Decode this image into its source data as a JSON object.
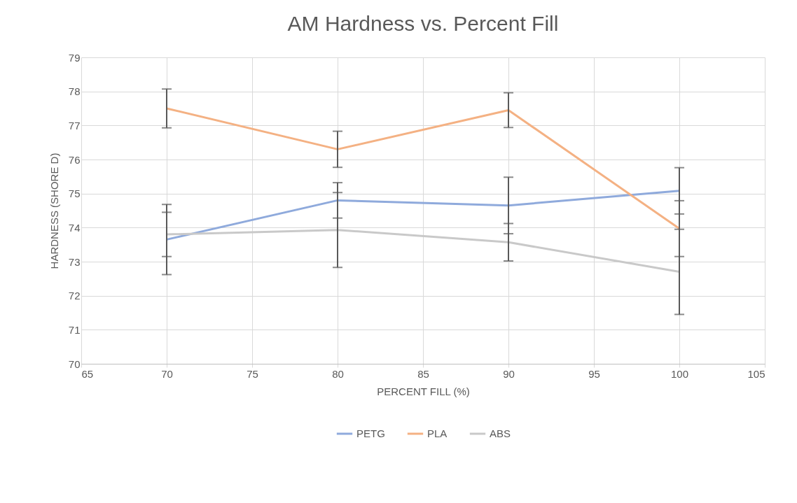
{
  "chart_data": {
    "type": "line",
    "title": "AM Hardness vs. Percent Fill",
    "xlabel": "PERCENT FILL (%)",
    "ylabel": "HARDNESS (SHORE D)",
    "x": [
      70,
      80,
      90,
      100
    ],
    "series": [
      {
        "name": "PETG",
        "color": "#8faadc",
        "values": [
          73.65,
          74.8,
          74.65,
          75.08
        ],
        "errors": [
          1.03,
          0.52,
          0.83,
          0.68
        ]
      },
      {
        "name": "PLA",
        "color": "#f4b183",
        "values": [
          77.5,
          76.3,
          77.45,
          73.97
        ],
        "errors": [
          0.57,
          0.53,
          0.51,
          0.82
        ]
      },
      {
        "name": "ABS",
        "color": "#c9c9c9",
        "values": [
          73.8,
          73.93,
          73.57,
          72.7
        ],
        "errors": [
          0.65,
          1.1,
          0.55,
          1.25
        ]
      }
    ],
    "xlim": [
      65,
      105
    ],
    "xticks": [
      65,
      70,
      75,
      80,
      85,
      90,
      95,
      100,
      105
    ],
    "ylim": [
      70,
      79
    ],
    "yticks": [
      70,
      71,
      72,
      73,
      74,
      75,
      76,
      77,
      78,
      79
    ],
    "grid": true,
    "legend": "bottom",
    "marker": "none",
    "line_style": "solid"
  }
}
